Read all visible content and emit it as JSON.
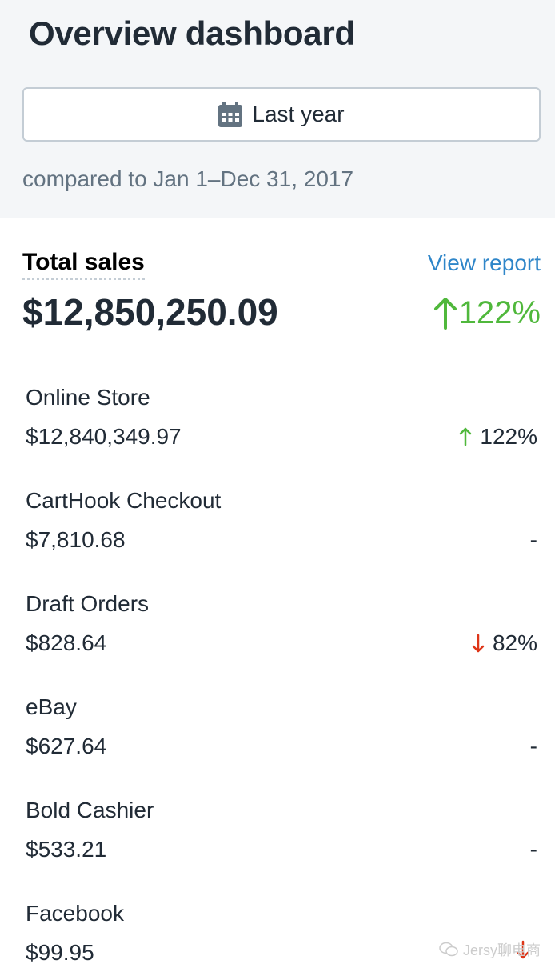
{
  "header": {
    "title": "Overview dashboard",
    "date_range_label": "Last year",
    "comparison_text": "compared to Jan 1–Dec 31, 2017"
  },
  "summary": {
    "label": "Total sales",
    "view_report_label": "View report",
    "total_value": "$12,850,250.09",
    "total_change": "122%",
    "total_change_direction": "up"
  },
  "channels": [
    {
      "name": "Online Store",
      "amount": "$12,840,349.97",
      "change": "122%",
      "direction": "up"
    },
    {
      "name": "CartHook Checkout",
      "amount": "$7,810.68",
      "change": "-",
      "direction": "none"
    },
    {
      "name": "Draft Orders",
      "amount": "$828.64",
      "change": "82%",
      "direction": "down"
    },
    {
      "name": "eBay",
      "amount": "$627.64",
      "change": "-",
      "direction": "none"
    },
    {
      "name": "Bold Cashier",
      "amount": "$533.21",
      "change": "-",
      "direction": "none"
    },
    {
      "name": "Facebook",
      "amount": "$99.95",
      "change": "",
      "direction": "down"
    }
  ],
  "watermark": {
    "text": "Jersy聊电商"
  },
  "colors": {
    "up": "#50b83c",
    "down": "#de3618",
    "link": "#2f86c9",
    "header_bg": "#f4f6f8"
  },
  "icons": {
    "date_button": "calendar-icon",
    "up": "arrow-up-icon",
    "down": "arrow-down-icon",
    "watermark": "wechat-icon"
  }
}
